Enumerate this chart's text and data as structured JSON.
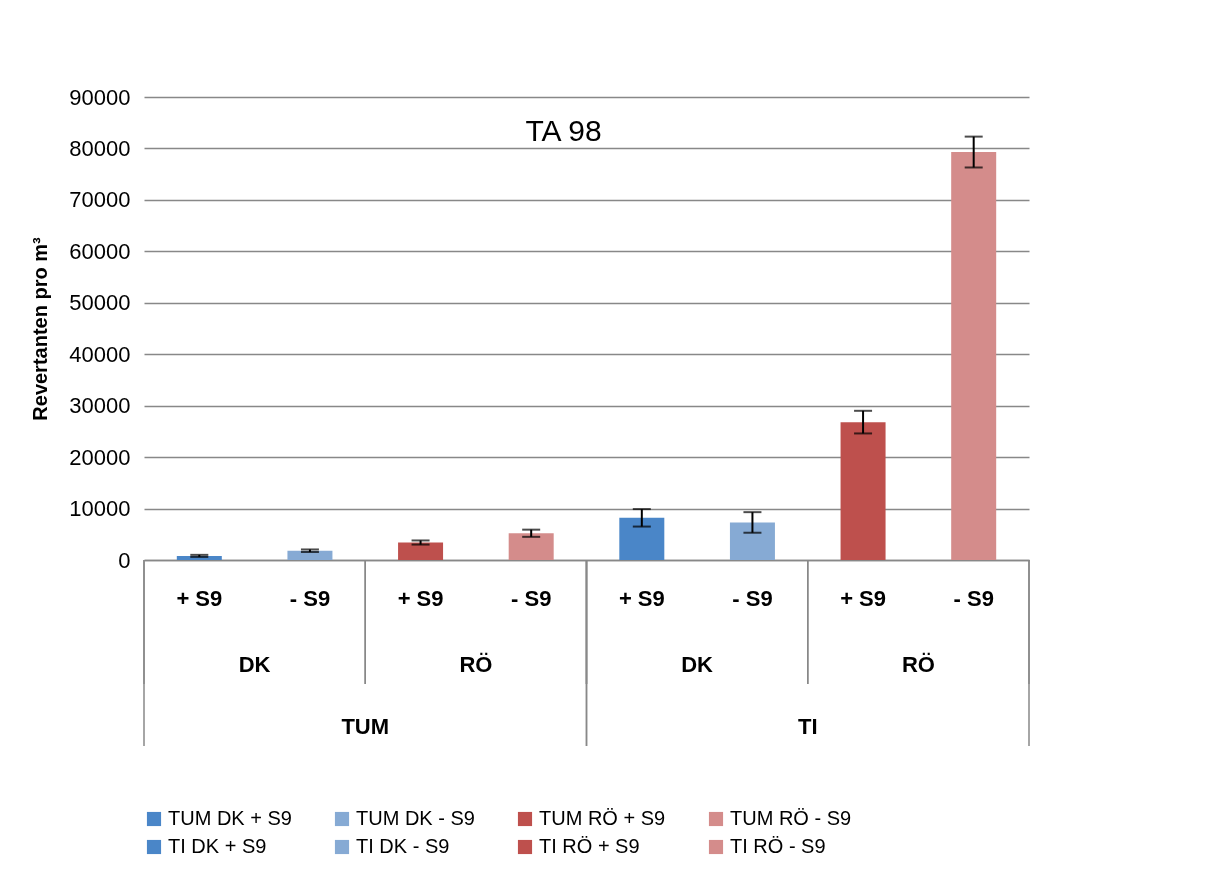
{
  "chart_data": {
    "type": "bar",
    "title": "TA 98",
    "ylabel": "Revertanten pro m³",
    "categories": [
      "+ S9",
      "- S9",
      "+ S9",
      "- S9",
      "+ S9",
      "- S9",
      "+ S9",
      "- S9"
    ],
    "annotations": [
      "DK",
      "RÖ",
      "DK",
      "RÖ",
      "TUM",
      "TI"
    ],
    "series": [
      {
        "name": "TUM DK + S9",
        "color": "#4a86c8",
        "values": [
          800,
          null,
          null,
          null,
          null,
          null,
          null,
          null
        ],
        "errors": [
          200,
          null,
          null,
          null,
          null,
          null,
          null,
          null
        ]
      },
      {
        "name": "TUM DK - S9",
        "color": "#86aad4",
        "values": [
          null,
          1800,
          null,
          null,
          null,
          null,
          null,
          null
        ],
        "errors": [
          null,
          250,
          null,
          null,
          null,
          null,
          null,
          null
        ]
      },
      {
        "name": "TUM RÖ + S9",
        "color": "#be504d",
        "values": [
          null,
          null,
          3400,
          null,
          null,
          null,
          null,
          null
        ],
        "errors": [
          null,
          null,
          400,
          null,
          null,
          null,
          null,
          null
        ]
      },
      {
        "name": "TUM RÖ - S9",
        "color": "#d48c8b",
        "values": [
          null,
          null,
          null,
          5200,
          null,
          null,
          null,
          null
        ],
        "errors": [
          null,
          null,
          null,
          700,
          null,
          null,
          null,
          null
        ]
      },
      {
        "name": "TI DK + S9",
        "color": "#4a86c8",
        "values": [
          null,
          null,
          null,
          null,
          8200,
          null,
          null,
          null
        ],
        "errors": [
          null,
          null,
          null,
          null,
          1700,
          null,
          null,
          null
        ]
      },
      {
        "name": "TI DK - S9",
        "color": "#86aad4",
        "values": [
          null,
          null,
          null,
          null,
          null,
          7300,
          null,
          null
        ],
        "errors": [
          null,
          null,
          null,
          null,
          null,
          2000,
          null,
          null
        ]
      },
      {
        "name": "TI RÖ + S9",
        "color": "#be504d",
        "values": [
          null,
          null,
          null,
          null,
          null,
          null,
          26800,
          null
        ],
        "errors": [
          null,
          null,
          null,
          null,
          null,
          null,
          2200,
          null
        ]
      },
      {
        "name": "TI RÖ - S9",
        "color": "#d48c8b",
        "values": [
          null,
          null,
          null,
          null,
          null,
          null,
          null,
          79300
        ],
        "errors": [
          null,
          null,
          null,
          null,
          null,
          null,
          null,
          3000
        ]
      }
    ],
    "ylim": [
      0,
      90000
    ],
    "yticks": [
      0,
      10000,
      20000,
      30000,
      40000,
      50000,
      60000,
      70000,
      80000,
      90000
    ],
    "grid": "y",
    "legend": "bottom"
  }
}
